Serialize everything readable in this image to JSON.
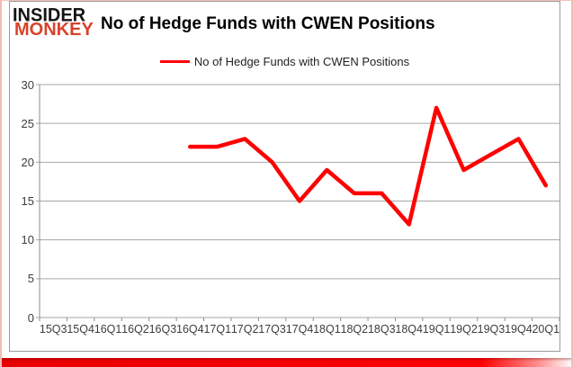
{
  "logo": {
    "line1": "INSIDER",
    "line2": "MONKEY"
  },
  "header": {
    "title": "No of Hedge Funds with CWEN Positions"
  },
  "chart_data": {
    "type": "line",
    "title": "No of Hedge Funds with CWEN Positions",
    "categories": [
      "15Q3",
      "15Q4",
      "16Q1",
      "16Q2",
      "16Q3",
      "16Q4",
      "17Q1",
      "17Q2",
      "17Q3",
      "17Q4",
      "18Q1",
      "18Q2",
      "18Q3",
      "18Q4",
      "19Q1",
      "19Q2",
      "19Q3",
      "19Q4",
      "20Q1"
    ],
    "series": [
      {
        "name": "No of Hedge Funds with CWEN Positions",
        "color": "#ff0000",
        "values": [
          null,
          null,
          null,
          null,
          null,
          22,
          22,
          23,
          20,
          15,
          19,
          16,
          16,
          12,
          27,
          19,
          21,
          23,
          17
        ]
      }
    ],
    "xlabel": "",
    "ylabel": "",
    "ylim": [
      0,
      30
    ],
    "yticks": [
      0,
      5,
      10,
      15,
      20,
      25,
      30
    ],
    "grid": true,
    "legend_position": "top-center"
  },
  "colors": {
    "series_line": "#ff0000",
    "gridline": "#a6a6a6",
    "axis": "#8c8c8c",
    "tick_label": "#3d3d3d",
    "logo_accent": "#d8432a",
    "border_pink": "#f2bcb4",
    "bottom_strip": "#ff0000"
  }
}
